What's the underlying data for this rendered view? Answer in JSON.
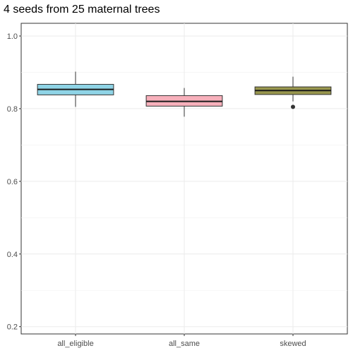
{
  "chart_data": {
    "type": "boxplot",
    "title": "4 seeds from 25 maternal trees",
    "xlabel": "",
    "ylabel": "",
    "ylim": [
      0.18,
      1.035
    ],
    "y_ticks": [
      0.2,
      0.4,
      0.6,
      0.8,
      1.0
    ],
    "y_tick_labels": [
      "0.2",
      "0.4",
      "0.6",
      "0.8",
      "1.0"
    ],
    "grid": true,
    "categories": [
      "all_eligible",
      "all_same",
      "skewed"
    ],
    "boxes": [
      {
        "name": "all_eligible",
        "color": "#8fd4e6",
        "whisker_low": 0.805,
        "q1": 0.838,
        "median": 0.853,
        "q3": 0.867,
        "whisker_high": 0.902,
        "outliers": []
      },
      {
        "name": "all_same",
        "color": "#f7b0bb",
        "whisker_low": 0.778,
        "q1": 0.807,
        "median": 0.82,
        "q3": 0.836,
        "whisker_high": 0.857,
        "outliers": []
      },
      {
        "name": "skewed",
        "color": "#99974e",
        "whisker_low": 0.82,
        "q1": 0.839,
        "median": 0.85,
        "q3": 0.86,
        "whisker_high": 0.888,
        "outliers": [
          0.805
        ]
      }
    ]
  }
}
